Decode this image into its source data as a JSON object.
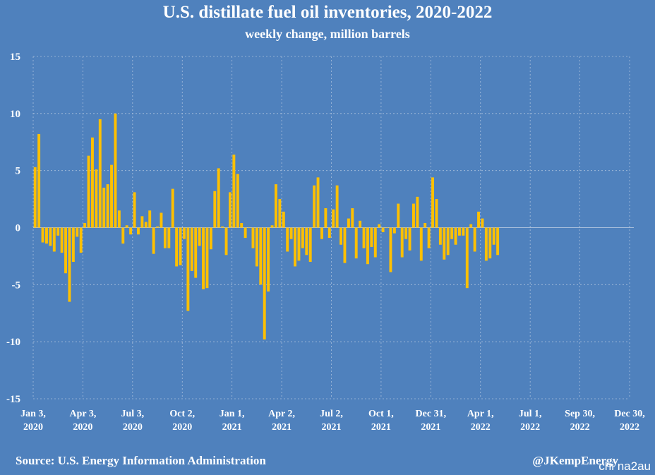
{
  "title": "U.S. distillate fuel oil inventories, 2020-2022",
  "subtitle": "weekly change, million barrels",
  "source": "Source: U.S. Energy Information Administration",
  "credit": "@JKempEnergy",
  "watermark": "chi na2au",
  "colors": {
    "background": "#4f81bd",
    "bar": "#ffc000",
    "grid": "#a9bfdc"
  },
  "chart_data": {
    "type": "bar",
    "title": "U.S. distillate fuel oil inventories, 2020-2022",
    "subtitle": "weekly change, million barrels",
    "xlabel": "",
    "ylabel": "",
    "ylim": [
      -15,
      15
    ],
    "yticks": [
      15,
      10,
      5,
      0,
      -5,
      -10,
      -15
    ],
    "grid": true,
    "legend": "none",
    "xtick_labels": [
      [
        "Jan 3,",
        "2020"
      ],
      [
        "Apr 3,",
        "2020"
      ],
      [
        "Jul 3,",
        "2020"
      ],
      [
        "Oct 2,",
        "2020"
      ],
      [
        "Jan 1,",
        "2021"
      ],
      [
        "Apr 2,",
        "2021"
      ],
      [
        "Jul 2,",
        "2021"
      ],
      [
        "Oct 1,",
        "2021"
      ],
      [
        "Dec 31,",
        "2021"
      ],
      [
        "Apr 1,",
        "2022"
      ],
      [
        "Jul 1,",
        "2022"
      ],
      [
        "Sep 30,",
        "2022"
      ],
      [
        "Dec 30,",
        "2022"
      ]
    ],
    "weeks_per_tick": 13,
    "series": [
      {
        "values": [
          5.3,
          8.2,
          -1.3,
          -1.4,
          -1.6,
          -2.1,
          -0.7,
          -2.2,
          -4.0,
          -6.5,
          -3.0,
          -0.8,
          -2.2,
          0.4,
          6.3,
          7.9,
          5.1,
          9.5,
          3.5,
          3.8,
          5.5,
          10.0,
          1.5,
          -1.4,
          0.2,
          -0.6,
          3.1,
          -0.6,
          1.0,
          0.5,
          1.5,
          -2.3,
          0.1,
          1.3,
          -1.8,
          -1.8,
          3.4,
          -3.4,
          -3.3,
          -1.0,
          -7.3,
          -3.8,
          -4.4,
          -1.6,
          -5.4,
          -5.3,
          -1.9,
          3.2,
          5.2,
          0.1,
          -2.4,
          3.1,
          6.4,
          4.7,
          0.4,
          -0.9,
          0.0,
          -1.8,
          -3.4,
          -5.0,
          -9.8,
          -5.6,
          0.2,
          3.8,
          2.5,
          1.4,
          -2.1,
          -1.0,
          -3.4,
          -2.9,
          -1.8,
          -2.4,
          -3.0,
          3.7,
          4.4,
          -1.0,
          1.7,
          -0.9,
          1.6,
          3.7,
          -1.5,
          -3.1,
          0.8,
          1.7,
          -2.7,
          0.6,
          -1.8,
          -3.2,
          -1.7,
          -2.6,
          0.3,
          -0.4,
          0.0,
          -3.9,
          -0.5,
          2.1,
          -2.6,
          -1.0,
          -2.0,
          2.1,
          2.7,
          -2.9,
          0.4,
          -1.8,
          4.4,
          2.5,
          -1.5,
          -2.8,
          -2.4,
          -1.0,
          -1.5,
          -0.7,
          -0.7,
          -5.3,
          0.3,
          -2.1,
          1.4,
          0.8,
          -2.9,
          -2.7,
          -1.5,
          -2.4
        ]
      }
    ]
  }
}
